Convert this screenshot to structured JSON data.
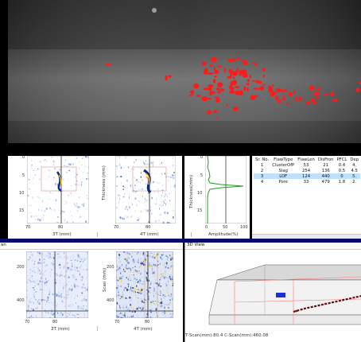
{
  "scan_view": {
    "description_icon": "weld-xray-image"
  },
  "ascan_left": {
    "x_ticks": [
      "70",
      "80"
    ],
    "y_ticks": [
      "0",
      "5",
      "10",
      "15"
    ],
    "xlabel": "3T (mm)"
  },
  "ascan_right": {
    "x_ticks": [
      "70",
      "80"
    ],
    "ylabel": "Thickness (mm)",
    "xlabel": "4T (mm)"
  },
  "amp_plot": {
    "ylabel": "Thickness(mm)",
    "y_ticks": [
      "0",
      "5",
      "10",
      "15"
    ],
    "x_ticks": [
      "0",
      "50",
      "100"
    ],
    "xlabel": "Amplitude(%)"
  },
  "flaw_table": {
    "columns": [
      "Sr. No.",
      "FlawType",
      "FlawLen",
      "DisFron",
      "PFCL",
      "Dep"
    ],
    "rows": [
      [
        "1",
        "ClusterOfP",
        "53",
        "21",
        "0.4",
        "4."
      ],
      [
        "2",
        "Slag",
        "254",
        "136",
        "0.5",
        "4.5"
      ],
      [
        "3",
        "LOF",
        "124",
        "440",
        "0",
        "5."
      ],
      [
        "4",
        "Pore",
        "33",
        "479",
        "1.8",
        "2."
      ]
    ],
    "selected_row": 2
  },
  "cscan_section": {
    "title_fragment": "an",
    "y_ticks": [
      "200",
      "400"
    ],
    "x_ticks": [
      "70",
      "80"
    ],
    "ylabel": "Scan (mm)",
    "xlabel_left": "3T (mm)",
    "xlabel_right": "4T (mm)"
  },
  "view3d": {
    "title": "3D View",
    "status": "T-Scan(mm):80.4 C-Scan(mm):460.08"
  },
  "colors": {
    "header_bar": "#0a0a6e",
    "defect_red": "#ff1a1a",
    "selected_row": "#bfe0ff"
  }
}
